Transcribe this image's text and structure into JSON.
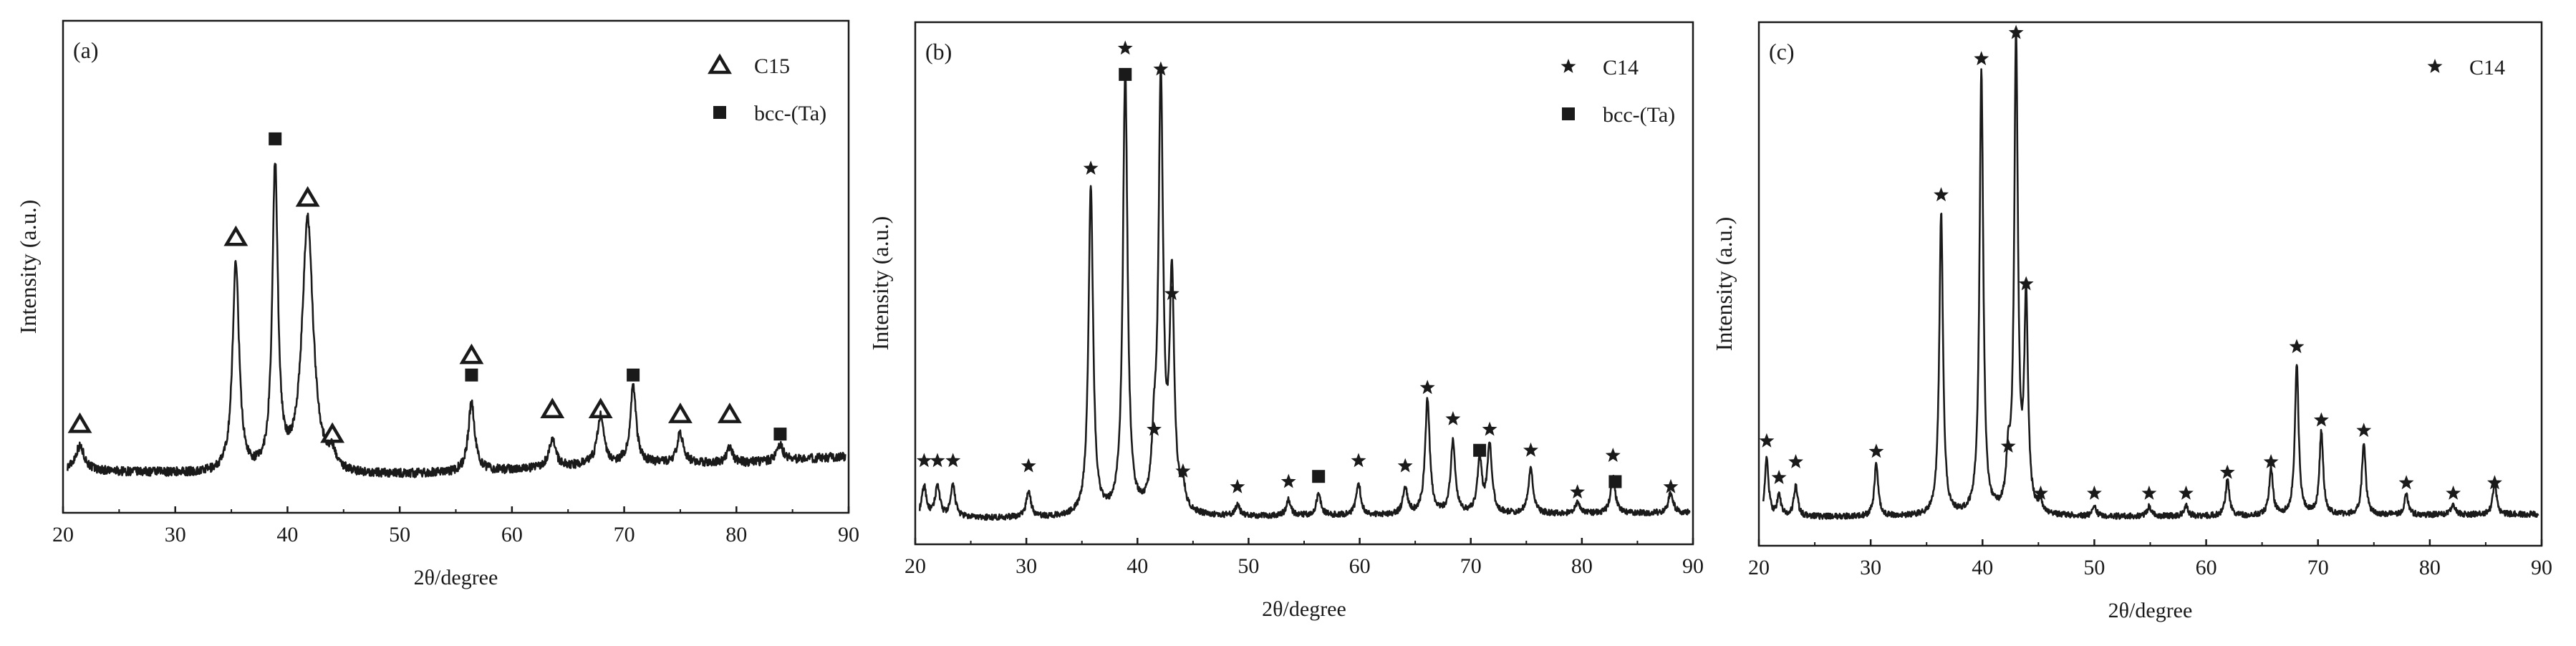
{
  "chart_data": [
    {
      "type": "line",
      "panel_label": "(a)",
      "xlabel": "2θ/degree",
      "ylabel": "Intensity (a.u.)",
      "xlim": [
        20,
        90
      ],
      "xticks": [
        20,
        30,
        40,
        50,
        60,
        70,
        80,
        90
      ],
      "ylim": [
        0,
        100
      ],
      "legend": {
        "position": "top-right",
        "entries": [
          {
            "marker": "triangle-open",
            "label": "C15"
          },
          {
            "marker": "square-filled",
            "label": "bcc-(Ta)"
          }
        ]
      },
      "baseline": [
        [
          20,
          8.5
        ],
        [
          30,
          8.0
        ],
        [
          40,
          7.0
        ],
        [
          55,
          8.0
        ],
        [
          70,
          10.0
        ],
        [
          80,
          10.0
        ],
        [
          90,
          11.5
        ]
      ],
      "peaks": [
        {
          "x": 21.5,
          "h": 5,
          "w": 0.5
        },
        {
          "x": 35.4,
          "h": 43,
          "w": 0.35
        },
        {
          "x": 38.9,
          "h": 62,
          "w": 0.3
        },
        {
          "x": 41.8,
          "h": 52,
          "w": 0.6
        },
        {
          "x": 44.0,
          "h": 3,
          "w": 0.4
        },
        {
          "x": 56.4,
          "h": 14,
          "w": 0.35
        },
        {
          "x": 63.6,
          "h": 6,
          "w": 0.35
        },
        {
          "x": 67.9,
          "h": 10,
          "w": 0.35
        },
        {
          "x": 70.8,
          "h": 16,
          "w": 0.3
        },
        {
          "x": 75.0,
          "h": 6,
          "w": 0.35
        },
        {
          "x": 79.4,
          "h": 3,
          "w": 0.35
        },
        {
          "x": 83.9,
          "h": 3,
          "w": 0.35
        }
      ],
      "markers": [
        {
          "x": 21.5,
          "y": 18,
          "type": "triangle-open"
        },
        {
          "x": 35.4,
          "y": 56,
          "type": "triangle-open"
        },
        {
          "x": 38.9,
          "y": 76,
          "type": "square-filled"
        },
        {
          "x": 41.8,
          "y": 64,
          "type": "triangle-open"
        },
        {
          "x": 44.0,
          "y": 16,
          "type": "triangle-open"
        },
        {
          "x": 56.4,
          "y": 28,
          "type": "square-filled"
        },
        {
          "x": 56.4,
          "y": 32,
          "type": "triangle-open"
        },
        {
          "x": 63.6,
          "y": 21,
          "type": "triangle-open"
        },
        {
          "x": 67.9,
          "y": 21,
          "type": "triangle-open"
        },
        {
          "x": 70.8,
          "y": 28,
          "type": "square-filled"
        },
        {
          "x": 75.0,
          "y": 20,
          "type": "triangle-open"
        },
        {
          "x": 79.4,
          "y": 20,
          "type": "triangle-open"
        },
        {
          "x": 83.9,
          "y": 16,
          "type": "square-filled"
        }
      ]
    },
    {
      "type": "line",
      "panel_label": "(b)",
      "xlabel": "2θ/degree",
      "ylabel": "Intensity (a.u.)",
      "xlim": [
        20,
        90
      ],
      "xticks": [
        20,
        30,
        40,
        50,
        60,
        70,
        80,
        90
      ],
      "ylim": [
        0,
        100
      ],
      "legend": {
        "position": "top-right",
        "entries": [
          {
            "marker": "star",
            "label": "C14"
          },
          {
            "marker": "square-filled",
            "label": "bcc-(Ta)"
          }
        ]
      },
      "baseline": [
        [
          20,
          5.0
        ],
        [
          40,
          5.0
        ],
        [
          60,
          5.5
        ],
        [
          90,
          6.0
        ]
      ],
      "peaks": [
        {
          "x": 20.8,
          "h": 6,
          "w": 0.25
        },
        {
          "x": 22.0,
          "h": 6,
          "w": 0.25
        },
        {
          "x": 23.4,
          "h": 6,
          "w": 0.25
        },
        {
          "x": 30.2,
          "h": 5,
          "w": 0.25
        },
        {
          "x": 35.8,
          "h": 63,
          "w": 0.25
        },
        {
          "x": 38.9,
          "h": 85,
          "w": 0.25
        },
        {
          "x": 41.5,
          "h": 10,
          "w": 0.25
        },
        {
          "x": 42.1,
          "h": 82,
          "w": 0.25
        },
        {
          "x": 43.1,
          "h": 44,
          "w": 0.25
        },
        {
          "x": 44.1,
          "h": 4,
          "w": 0.25
        },
        {
          "x": 49.0,
          "h": 2,
          "w": 0.25
        },
        {
          "x": 53.6,
          "h": 3,
          "w": 0.25
        },
        {
          "x": 56.3,
          "h": 4,
          "w": 0.25
        },
        {
          "x": 59.9,
          "h": 6,
          "w": 0.25
        },
        {
          "x": 64.1,
          "h": 5,
          "w": 0.25
        },
        {
          "x": 66.1,
          "h": 22,
          "w": 0.25
        },
        {
          "x": 68.4,
          "h": 14,
          "w": 0.25
        },
        {
          "x": 70.8,
          "h": 10,
          "w": 0.25
        },
        {
          "x": 71.7,
          "h": 13,
          "w": 0.25
        },
        {
          "x": 75.4,
          "h": 9,
          "w": 0.25
        },
        {
          "x": 79.6,
          "h": 2,
          "w": 0.25
        },
        {
          "x": 82.8,
          "h": 7,
          "w": 0.25
        },
        {
          "x": 88.0,
          "h": 4,
          "w": 0.25
        }
      ],
      "markers": [
        {
          "x": 20.8,
          "y": 16,
          "type": "star"
        },
        {
          "x": 22.0,
          "y": 16,
          "type": "star"
        },
        {
          "x": 23.4,
          "y": 16,
          "type": "star"
        },
        {
          "x": 30.2,
          "y": 15,
          "type": "star"
        },
        {
          "x": 35.8,
          "y": 72,
          "type": "star"
        },
        {
          "x": 38.9,
          "y": 95,
          "type": "star"
        },
        {
          "x": 38.9,
          "y": 90,
          "type": "square-filled"
        },
        {
          "x": 41.5,
          "y": 22,
          "type": "star"
        },
        {
          "x": 42.1,
          "y": 91,
          "type": "star"
        },
        {
          "x": 43.1,
          "y": 48,
          "type": "star"
        },
        {
          "x": 44.1,
          "y": 14,
          "type": "star"
        },
        {
          "x": 49.0,
          "y": 11,
          "type": "star"
        },
        {
          "x": 53.6,
          "y": 12,
          "type": "star"
        },
        {
          "x": 56.3,
          "y": 13,
          "type": "square-filled"
        },
        {
          "x": 59.9,
          "y": 16,
          "type": "star"
        },
        {
          "x": 64.1,
          "y": 15,
          "type": "star"
        },
        {
          "x": 66.1,
          "y": 30,
          "type": "star"
        },
        {
          "x": 68.4,
          "y": 24,
          "type": "star"
        },
        {
          "x": 70.8,
          "y": 18,
          "type": "square-filled"
        },
        {
          "x": 71.7,
          "y": 22,
          "type": "star"
        },
        {
          "x": 75.4,
          "y": 18,
          "type": "star"
        },
        {
          "x": 79.6,
          "y": 10,
          "type": "star"
        },
        {
          "x": 82.8,
          "y": 17,
          "type": "star"
        },
        {
          "x": 83.0,
          "y": 12,
          "type": "square-filled"
        },
        {
          "x": 88.0,
          "y": 11,
          "type": "star"
        }
      ]
    },
    {
      "type": "line",
      "panel_label": "(c)",
      "xlabel": "2θ/degree",
      "ylabel": "Intensity (a.u.)",
      "xlim": [
        20,
        90
      ],
      "xticks": [
        20,
        30,
        40,
        50,
        60,
        70,
        80,
        90
      ],
      "ylim": [
        0,
        100
      ],
      "legend": {
        "position": "top-right",
        "entries": [
          {
            "marker": "star",
            "label": "C14"
          }
        ]
      },
      "baseline": [
        [
          20,
          5.5
        ],
        [
          50,
          5.5
        ],
        [
          90,
          6.0
        ]
      ],
      "peaks": [
        {
          "x": 20.7,
          "h": 11,
          "w": 0.2
        },
        {
          "x": 21.8,
          "h": 4,
          "w": 0.2
        },
        {
          "x": 23.3,
          "h": 6,
          "w": 0.2
        },
        {
          "x": 30.5,
          "h": 10,
          "w": 0.2
        },
        {
          "x": 36.3,
          "h": 58,
          "w": 0.2
        },
        {
          "x": 39.9,
          "h": 85,
          "w": 0.2
        },
        {
          "x": 42.3,
          "h": 9,
          "w": 0.2
        },
        {
          "x": 43.0,
          "h": 90,
          "w": 0.2
        },
        {
          "x": 43.9,
          "h": 40,
          "w": 0.2
        },
        {
          "x": 45.2,
          "h": 2,
          "w": 0.2
        },
        {
          "x": 50.0,
          "h": 2,
          "w": 0.2
        },
        {
          "x": 54.9,
          "h": 2,
          "w": 0.2
        },
        {
          "x": 58.2,
          "h": 2,
          "w": 0.2
        },
        {
          "x": 61.9,
          "h": 7,
          "w": 0.2
        },
        {
          "x": 65.8,
          "h": 9,
          "w": 0.2
        },
        {
          "x": 68.1,
          "h": 29,
          "w": 0.2
        },
        {
          "x": 70.3,
          "h": 16,
          "w": 0.2
        },
        {
          "x": 74.1,
          "h": 14,
          "w": 0.2
        },
        {
          "x": 77.9,
          "h": 4,
          "w": 0.2
        },
        {
          "x": 82.1,
          "h": 2,
          "w": 0.2
        },
        {
          "x": 85.8,
          "h": 6,
          "w": 0.2
        }
      ],
      "markers": [
        {
          "x": 20.7,
          "y": 20,
          "type": "star"
        },
        {
          "x": 21.8,
          "y": 13,
          "type": "star"
        },
        {
          "x": 23.3,
          "y": 16,
          "type": "star"
        },
        {
          "x": 30.5,
          "y": 18,
          "type": "star"
        },
        {
          "x": 36.3,
          "y": 67,
          "type": "star"
        },
        {
          "x": 39.9,
          "y": 93,
          "type": "star"
        },
        {
          "x": 42.3,
          "y": 19,
          "type": "star"
        },
        {
          "x": 43.0,
          "y": 98,
          "type": "star"
        },
        {
          "x": 43.9,
          "y": 50,
          "type": "star"
        },
        {
          "x": 45.2,
          "y": 10,
          "type": "star"
        },
        {
          "x": 50.0,
          "y": 10,
          "type": "star"
        },
        {
          "x": 54.9,
          "y": 10,
          "type": "star"
        },
        {
          "x": 58.2,
          "y": 10,
          "type": "star"
        },
        {
          "x": 61.9,
          "y": 14,
          "type": "star"
        },
        {
          "x": 65.8,
          "y": 16,
          "type": "star"
        },
        {
          "x": 68.1,
          "y": 38,
          "type": "star"
        },
        {
          "x": 70.3,
          "y": 24,
          "type": "star"
        },
        {
          "x": 74.1,
          "y": 22,
          "type": "star"
        },
        {
          "x": 77.9,
          "y": 12,
          "type": "star"
        },
        {
          "x": 82.1,
          "y": 10,
          "type": "star"
        },
        {
          "x": 85.8,
          "y": 12,
          "type": "star"
        }
      ]
    }
  ]
}
